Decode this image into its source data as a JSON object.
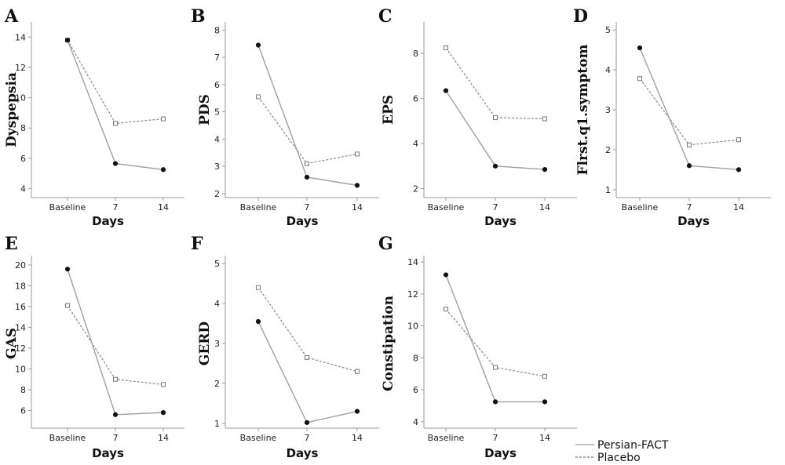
{
  "legend": {
    "items": [
      {
        "label": "Persian-FACT",
        "color": "#9a9a9a",
        "style": "solid"
      },
      {
        "label": "Placebo",
        "color": "#777777",
        "style": "dashed"
      }
    ]
  },
  "chart_data": [
    {
      "panel": "A",
      "type": "line",
      "categories": [
        "Baseline",
        "7",
        "14"
      ],
      "xlabel": "Days",
      "ylabel": "Dyspepsia",
      "ylim": [
        3.4,
        15
      ],
      "yticks": [
        4,
        6,
        8,
        10,
        12,
        14
      ],
      "series": [
        {
          "name": "Persian-FACT",
          "values": [
            13.8,
            5.65,
            5.25
          ]
        },
        {
          "name": "Placebo",
          "values": [
            13.8,
            8.3,
            8.6
          ]
        }
      ]
    },
    {
      "panel": "B",
      "type": "line",
      "categories": [
        "Baseline",
        "7",
        "14"
      ],
      "xlabel": "Days",
      "ylabel": "PDS",
      "ylim": [
        1.85,
        8.3
      ],
      "yticks": [
        2,
        3,
        4,
        5,
        6,
        7,
        8
      ],
      "series": [
        {
          "name": "Persian-FACT",
          "values": [
            7.45,
            2.6,
            2.3
          ]
        },
        {
          "name": "Placebo",
          "values": [
            5.55,
            3.1,
            3.45
          ]
        }
      ]
    },
    {
      "panel": "C",
      "type": "line",
      "categories": [
        "Baseline",
        "7",
        "14"
      ],
      "xlabel": "Days",
      "ylabel": "EPS",
      "ylim": [
        1.6,
        9.4
      ],
      "yticks": [
        2,
        4,
        6,
        8
      ],
      "series": [
        {
          "name": "Persian-FACT",
          "values": [
            6.35,
            3.0,
            2.85
          ]
        },
        {
          "name": "Placebo",
          "values": [
            8.25,
            5.15,
            5.1
          ]
        }
      ]
    },
    {
      "panel": "D",
      "type": "line",
      "categories": [
        "Baseline",
        "7",
        "14"
      ],
      "xlabel": "Days",
      "ylabel": "Flrst.q1.symptom",
      "ylim": [
        0.8,
        5.2
      ],
      "yticks": [
        1,
        2,
        3,
        4,
        5
      ],
      "series": [
        {
          "name": "Persian-FACT",
          "values": [
            4.55,
            1.6,
            1.5
          ]
        },
        {
          "name": "Placebo",
          "values": [
            3.78,
            2.12,
            2.25
          ]
        }
      ]
    },
    {
      "panel": "E",
      "type": "line",
      "categories": [
        "Baseline",
        "7",
        "14"
      ],
      "xlabel": "Days",
      "ylabel": "GAS",
      "ylim": [
        4.3,
        20.9
      ],
      "yticks": [
        6,
        8,
        10,
        12,
        14,
        16,
        18,
        20
      ],
      "series": [
        {
          "name": "Persian-FACT",
          "values": [
            19.6,
            5.6,
            5.8
          ]
        },
        {
          "name": "Placebo",
          "values": [
            16.1,
            9.0,
            8.5
          ]
        }
      ]
    },
    {
      "panel": "F",
      "type": "line",
      "categories": [
        "Baseline",
        "7",
        "14"
      ],
      "xlabel": "Days",
      "ylabel": "GERD",
      "ylim": [
        0.88,
        5.2
      ],
      "yticks": [
        1,
        2,
        3,
        4,
        5
      ],
      "series": [
        {
          "name": "Persian-FACT",
          "values": [
            3.55,
            1.02,
            1.3
          ]
        },
        {
          "name": "Placebo",
          "values": [
            4.4,
            2.65,
            2.3
          ]
        }
      ]
    },
    {
      "panel": "G",
      "type": "line",
      "categories": [
        "Baseline",
        "7",
        "14"
      ],
      "xlabel": "Days",
      "ylabel": "Constipation",
      "ylim": [
        3.6,
        14.4
      ],
      "yticks": [
        4,
        6,
        8,
        10,
        12,
        14
      ],
      "series": [
        {
          "name": "Persian-FACT",
          "values": [
            13.2,
            5.25,
            5.25
          ]
        },
        {
          "name": "Placebo",
          "values": [
            11.05,
            7.4,
            6.85
          ]
        }
      ]
    }
  ]
}
